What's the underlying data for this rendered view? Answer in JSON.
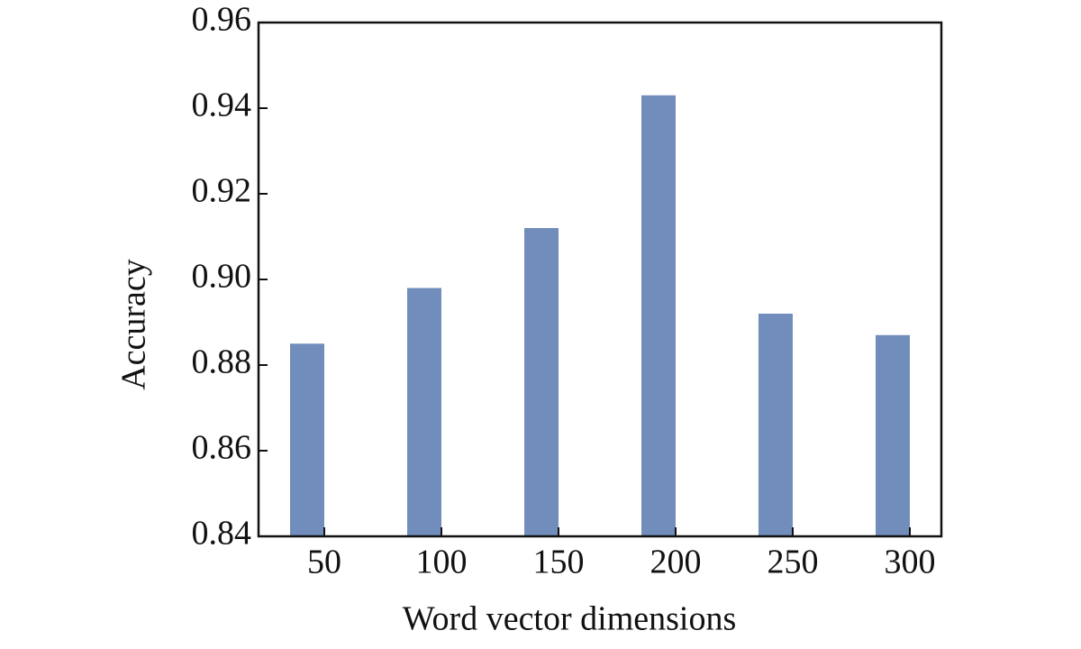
{
  "chart_data": {
    "type": "bar",
    "x_label": "Word vector dimensions",
    "y_label": "Accuracy",
    "categories": [
      "50",
      "100",
      "150",
      "200",
      "250",
      "300"
    ],
    "values": [
      0.885,
      0.898,
      0.912,
      0.943,
      0.892,
      0.887
    ],
    "color": "#718dbb",
    "ylim": [
      0.84,
      0.96
    ],
    "yticks": [
      0.84,
      0.86,
      0.88,
      {
        "value": 0.9,
        "label": "0.90"
      },
      0.92,
      0.94,
      0.96
    ],
    "grid": false
  }
}
